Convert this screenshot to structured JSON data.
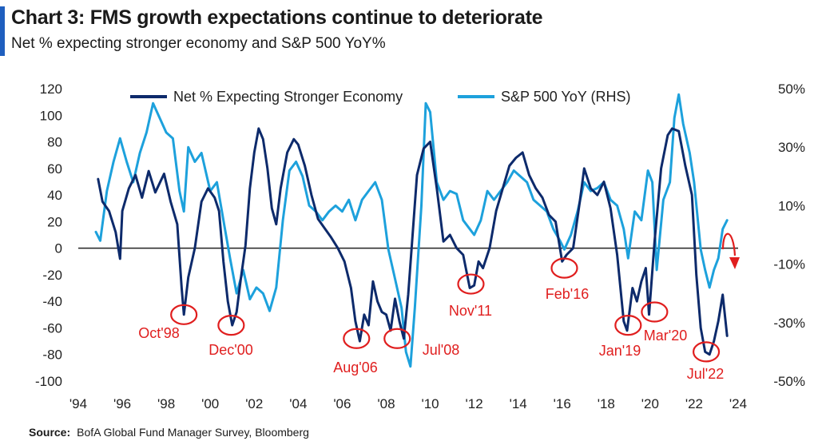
{
  "header": {
    "title": "Chart 3: FMS growth expectations continue to deteriorate",
    "subtitle": "Net % expecting stronger economy and S&P 500 YoY%"
  },
  "footer": {
    "source_label": "Source:",
    "source_text": "BofA Global Fund Manager Survey, Bloomberg"
  },
  "colors": {
    "series_fms": "#0d2a6b",
    "series_spx": "#1da1dc",
    "annotation": "#e01e1e",
    "accent": "#1f5fbf"
  },
  "chart_data": {
    "type": "line",
    "x_ticks": [
      "'94",
      "'96",
      "'98",
      "'00",
      "'02",
      "'04",
      "'06",
      "'08",
      "'10",
      "'12",
      "'14",
      "'16",
      "'18",
      "'20",
      "'22",
      "'24"
    ],
    "x_range": [
      1994,
      2024
    ],
    "y_left": {
      "range": [
        -100,
        120
      ],
      "ticks": [
        "120",
        "100",
        "80",
        "60",
        "40",
        "20",
        "0",
        "-20",
        "-40",
        "-60",
        "-80",
        "-100"
      ]
    },
    "y_right": {
      "range": [
        -50,
        50
      ],
      "ticks": [
        "50%",
        "30%",
        "10%",
        "-10%",
        "-30%",
        "-50%"
      ]
    },
    "legend": [
      "Net % Expecting Stronger Economy",
      "S&P 500 YoY (RHS)"
    ],
    "series": [
      {
        "name": "Net % Expecting Stronger Economy",
        "axis": "left",
        "points": [
          [
            1994.9,
            52
          ],
          [
            1995.1,
            35
          ],
          [
            1995.4,
            28
          ],
          [
            1995.7,
            12
          ],
          [
            1995.9,
            -8
          ],
          [
            1996.0,
            28
          ],
          [
            1996.3,
            45
          ],
          [
            1996.6,
            55
          ],
          [
            1996.9,
            38
          ],
          [
            1997.2,
            58
          ],
          [
            1997.5,
            42
          ],
          [
            1997.9,
            56
          ],
          [
            1998.2,
            35
          ],
          [
            1998.5,
            18
          ],
          [
            1998.7,
            -30
          ],
          [
            1998.8,
            -50
          ],
          [
            1999.0,
            -22
          ],
          [
            1999.3,
            0
          ],
          [
            1999.6,
            35
          ],
          [
            1999.9,
            45
          ],
          [
            2000.2,
            38
          ],
          [
            2000.4,
            28
          ],
          [
            2000.6,
            -10
          ],
          [
            2000.8,
            -40
          ],
          [
            2001.0,
            -58
          ],
          [
            2001.2,
            -48
          ],
          [
            2001.4,
            -22
          ],
          [
            2001.6,
            2
          ],
          [
            2001.8,
            45
          ],
          [
            2002.0,
            72
          ],
          [
            2002.2,
            90
          ],
          [
            2002.4,
            82
          ],
          [
            2002.6,
            60
          ],
          [
            2002.8,
            30
          ],
          [
            2003.0,
            18
          ],
          [
            2003.2,
            45
          ],
          [
            2003.5,
            72
          ],
          [
            2003.8,
            82
          ],
          [
            2004.0,
            78
          ],
          [
            2004.3,
            62
          ],
          [
            2004.6,
            40
          ],
          [
            2004.9,
            22
          ],
          [
            2005.2,
            15
          ],
          [
            2005.5,
            8
          ],
          [
            2005.8,
            0
          ],
          [
            2006.1,
            -10
          ],
          [
            2006.4,
            -30
          ],
          [
            2006.6,
            -55
          ],
          [
            2006.8,
            -70
          ],
          [
            2007.0,
            -50
          ],
          [
            2007.2,
            -58
          ],
          [
            2007.4,
            -25
          ],
          [
            2007.6,
            -40
          ],
          [
            2007.8,
            -48
          ],
          [
            2008.0,
            -50
          ],
          [
            2008.2,
            -62
          ],
          [
            2008.4,
            -38
          ],
          [
            2008.6,
            -55
          ],
          [
            2008.8,
            -68
          ],
          [
            2009.0,
            -35
          ],
          [
            2009.2,
            10
          ],
          [
            2009.4,
            55
          ],
          [
            2009.7,
            75
          ],
          [
            2010.0,
            80
          ],
          [
            2010.3,
            45
          ],
          [
            2010.6,
            5
          ],
          [
            2010.9,
            10
          ],
          [
            2011.2,
            0
          ],
          [
            2011.5,
            -5
          ],
          [
            2011.8,
            -30
          ],
          [
            2012.0,
            -28
          ],
          [
            2012.2,
            -10
          ],
          [
            2012.4,
            -15
          ],
          [
            2012.7,
            0
          ],
          [
            2013.0,
            28
          ],
          [
            2013.3,
            45
          ],
          [
            2013.6,
            62
          ],
          [
            2013.9,
            68
          ],
          [
            2014.2,
            72
          ],
          [
            2014.5,
            55
          ],
          [
            2014.8,
            45
          ],
          [
            2015.1,
            38
          ],
          [
            2015.4,
            25
          ],
          [
            2015.7,
            20
          ],
          [
            2016.0,
            -10
          ],
          [
            2016.2,
            -5
          ],
          [
            2016.5,
            0
          ],
          [
            2016.8,
            35
          ],
          [
            2017.0,
            60
          ],
          [
            2017.3,
            45
          ],
          [
            2017.6,
            40
          ],
          [
            2017.9,
            50
          ],
          [
            2018.2,
            30
          ],
          [
            2018.5,
            -5
          ],
          [
            2018.8,
            -55
          ],
          [
            2018.95,
            -62
          ],
          [
            2019.2,
            -30
          ],
          [
            2019.4,
            -40
          ],
          [
            2019.6,
            -25
          ],
          [
            2019.8,
            -15
          ],
          [
            2019.95,
            -50
          ],
          [
            2020.2,
            5
          ],
          [
            2020.5,
            60
          ],
          [
            2020.8,
            85
          ],
          [
            2021.0,
            90
          ],
          [
            2021.3,
            88
          ],
          [
            2021.6,
            62
          ],
          [
            2021.9,
            40
          ],
          [
            2022.1,
            -20
          ],
          [
            2022.3,
            -60
          ],
          [
            2022.5,
            -78
          ],
          [
            2022.7,
            -80
          ],
          [
            2022.9,
            -70
          ],
          [
            2023.1,
            -55
          ],
          [
            2023.3,
            -35
          ],
          [
            2023.5,
            -66
          ]
        ]
      },
      {
        "name": "S&P 500 YoY (RHS)",
        "axis": "right",
        "points": [
          [
            1994.8,
            1
          ],
          [
            1995.0,
            -2
          ],
          [
            1995.3,
            15
          ],
          [
            1995.6,
            25
          ],
          [
            1995.9,
            33
          ],
          [
            1996.2,
            25
          ],
          [
            1996.5,
            18
          ],
          [
            1996.8,
            28
          ],
          [
            1997.1,
            35
          ],
          [
            1997.4,
            45
          ],
          [
            1997.7,
            40
          ],
          [
            1998.0,
            35
          ],
          [
            1998.3,
            33
          ],
          [
            1998.6,
            15
          ],
          [
            1998.8,
            8
          ],
          [
            1999.0,
            30
          ],
          [
            1999.3,
            25
          ],
          [
            1999.6,
            28
          ],
          [
            2000.0,
            15
          ],
          [
            2000.3,
            18
          ],
          [
            2000.6,
            5
          ],
          [
            2000.9,
            -8
          ],
          [
            2001.2,
            -20
          ],
          [
            2001.5,
            -12
          ],
          [
            2001.8,
            -22
          ],
          [
            2002.1,
            -18
          ],
          [
            2002.4,
            -20
          ],
          [
            2002.7,
            -26
          ],
          [
            2003.0,
            -18
          ],
          [
            2003.3,
            5
          ],
          [
            2003.6,
            22
          ],
          [
            2003.9,
            25
          ],
          [
            2004.2,
            20
          ],
          [
            2004.5,
            10
          ],
          [
            2004.8,
            8
          ],
          [
            2005.1,
            5
          ],
          [
            2005.4,
            8
          ],
          [
            2005.7,
            10
          ],
          [
            2006.0,
            8
          ],
          [
            2006.3,
            12
          ],
          [
            2006.6,
            5
          ],
          [
            2006.9,
            12
          ],
          [
            2007.2,
            15
          ],
          [
            2007.5,
            18
          ],
          [
            2007.8,
            12
          ],
          [
            2008.1,
            -5
          ],
          [
            2008.4,
            -15
          ],
          [
            2008.7,
            -25
          ],
          [
            2008.9,
            -40
          ],
          [
            2009.1,
            -45
          ],
          [
            2009.3,
            -25
          ],
          [
            2009.6,
            10
          ],
          [
            2009.8,
            45
          ],
          [
            2010.0,
            42
          ],
          [
            2010.3,
            18
          ],
          [
            2010.6,
            12
          ],
          [
            2010.9,
            15
          ],
          [
            2011.2,
            14
          ],
          [
            2011.5,
            5
          ],
          [
            2011.8,
            2
          ],
          [
            2012.0,
            0
          ],
          [
            2012.3,
            5
          ],
          [
            2012.6,
            15
          ],
          [
            2012.9,
            12
          ],
          [
            2013.2,
            15
          ],
          [
            2013.5,
            18
          ],
          [
            2013.8,
            22
          ],
          [
            2014.1,
            20
          ],
          [
            2014.4,
            18
          ],
          [
            2014.7,
            12
          ],
          [
            2015.0,
            10
          ],
          [
            2015.3,
            8
          ],
          [
            2015.6,
            2
          ],
          [
            2015.9,
            -2
          ],
          [
            2016.1,
            -5
          ],
          [
            2016.4,
            0
          ],
          [
            2016.7,
            8
          ],
          [
            2017.0,
            18
          ],
          [
            2017.3,
            15
          ],
          [
            2017.6,
            16
          ],
          [
            2017.9,
            18
          ],
          [
            2018.2,
            12
          ],
          [
            2018.5,
            10
          ],
          [
            2018.8,
            2
          ],
          [
            2019.0,
            -8
          ],
          [
            2019.3,
            8
          ],
          [
            2019.6,
            5
          ],
          [
            2019.9,
            22
          ],
          [
            2020.1,
            18
          ],
          [
            2020.3,
            -12
          ],
          [
            2020.6,
            12
          ],
          [
            2020.9,
            18
          ],
          [
            2021.1,
            40
          ],
          [
            2021.3,
            48
          ],
          [
            2021.5,
            38
          ],
          [
            2021.8,
            28
          ],
          [
            2022.0,
            18
          ],
          [
            2022.3,
            -5
          ],
          [
            2022.5,
            -12
          ],
          [
            2022.7,
            -18
          ],
          [
            2022.9,
            -12
          ],
          [
            2023.1,
            -8
          ],
          [
            2023.3,
            2
          ],
          [
            2023.5,
            5
          ]
        ]
      }
    ],
    "annotations": [
      {
        "label": "Oct'98",
        "x": 1998.8,
        "y": -50
      },
      {
        "label": "Dec'00",
        "x": 2000.95,
        "y": -58
      },
      {
        "label": "Aug'06",
        "x": 2006.65,
        "y": -68
      },
      {
        "label": "Jul'08",
        "x": 2008.5,
        "y": -68
      },
      {
        "label": "Nov'11",
        "x": 2011.85,
        "y": -27
      },
      {
        "label": "Feb'16",
        "x": 2016.1,
        "y": -15
      },
      {
        "label": "Jan'19",
        "x": 2019.0,
        "y": -58
      },
      {
        "label": "Mar'20",
        "x": 2020.2,
        "y": -48
      },
      {
        "label": "Jul'22",
        "x": 2022.55,
        "y": -78
      }
    ]
  }
}
